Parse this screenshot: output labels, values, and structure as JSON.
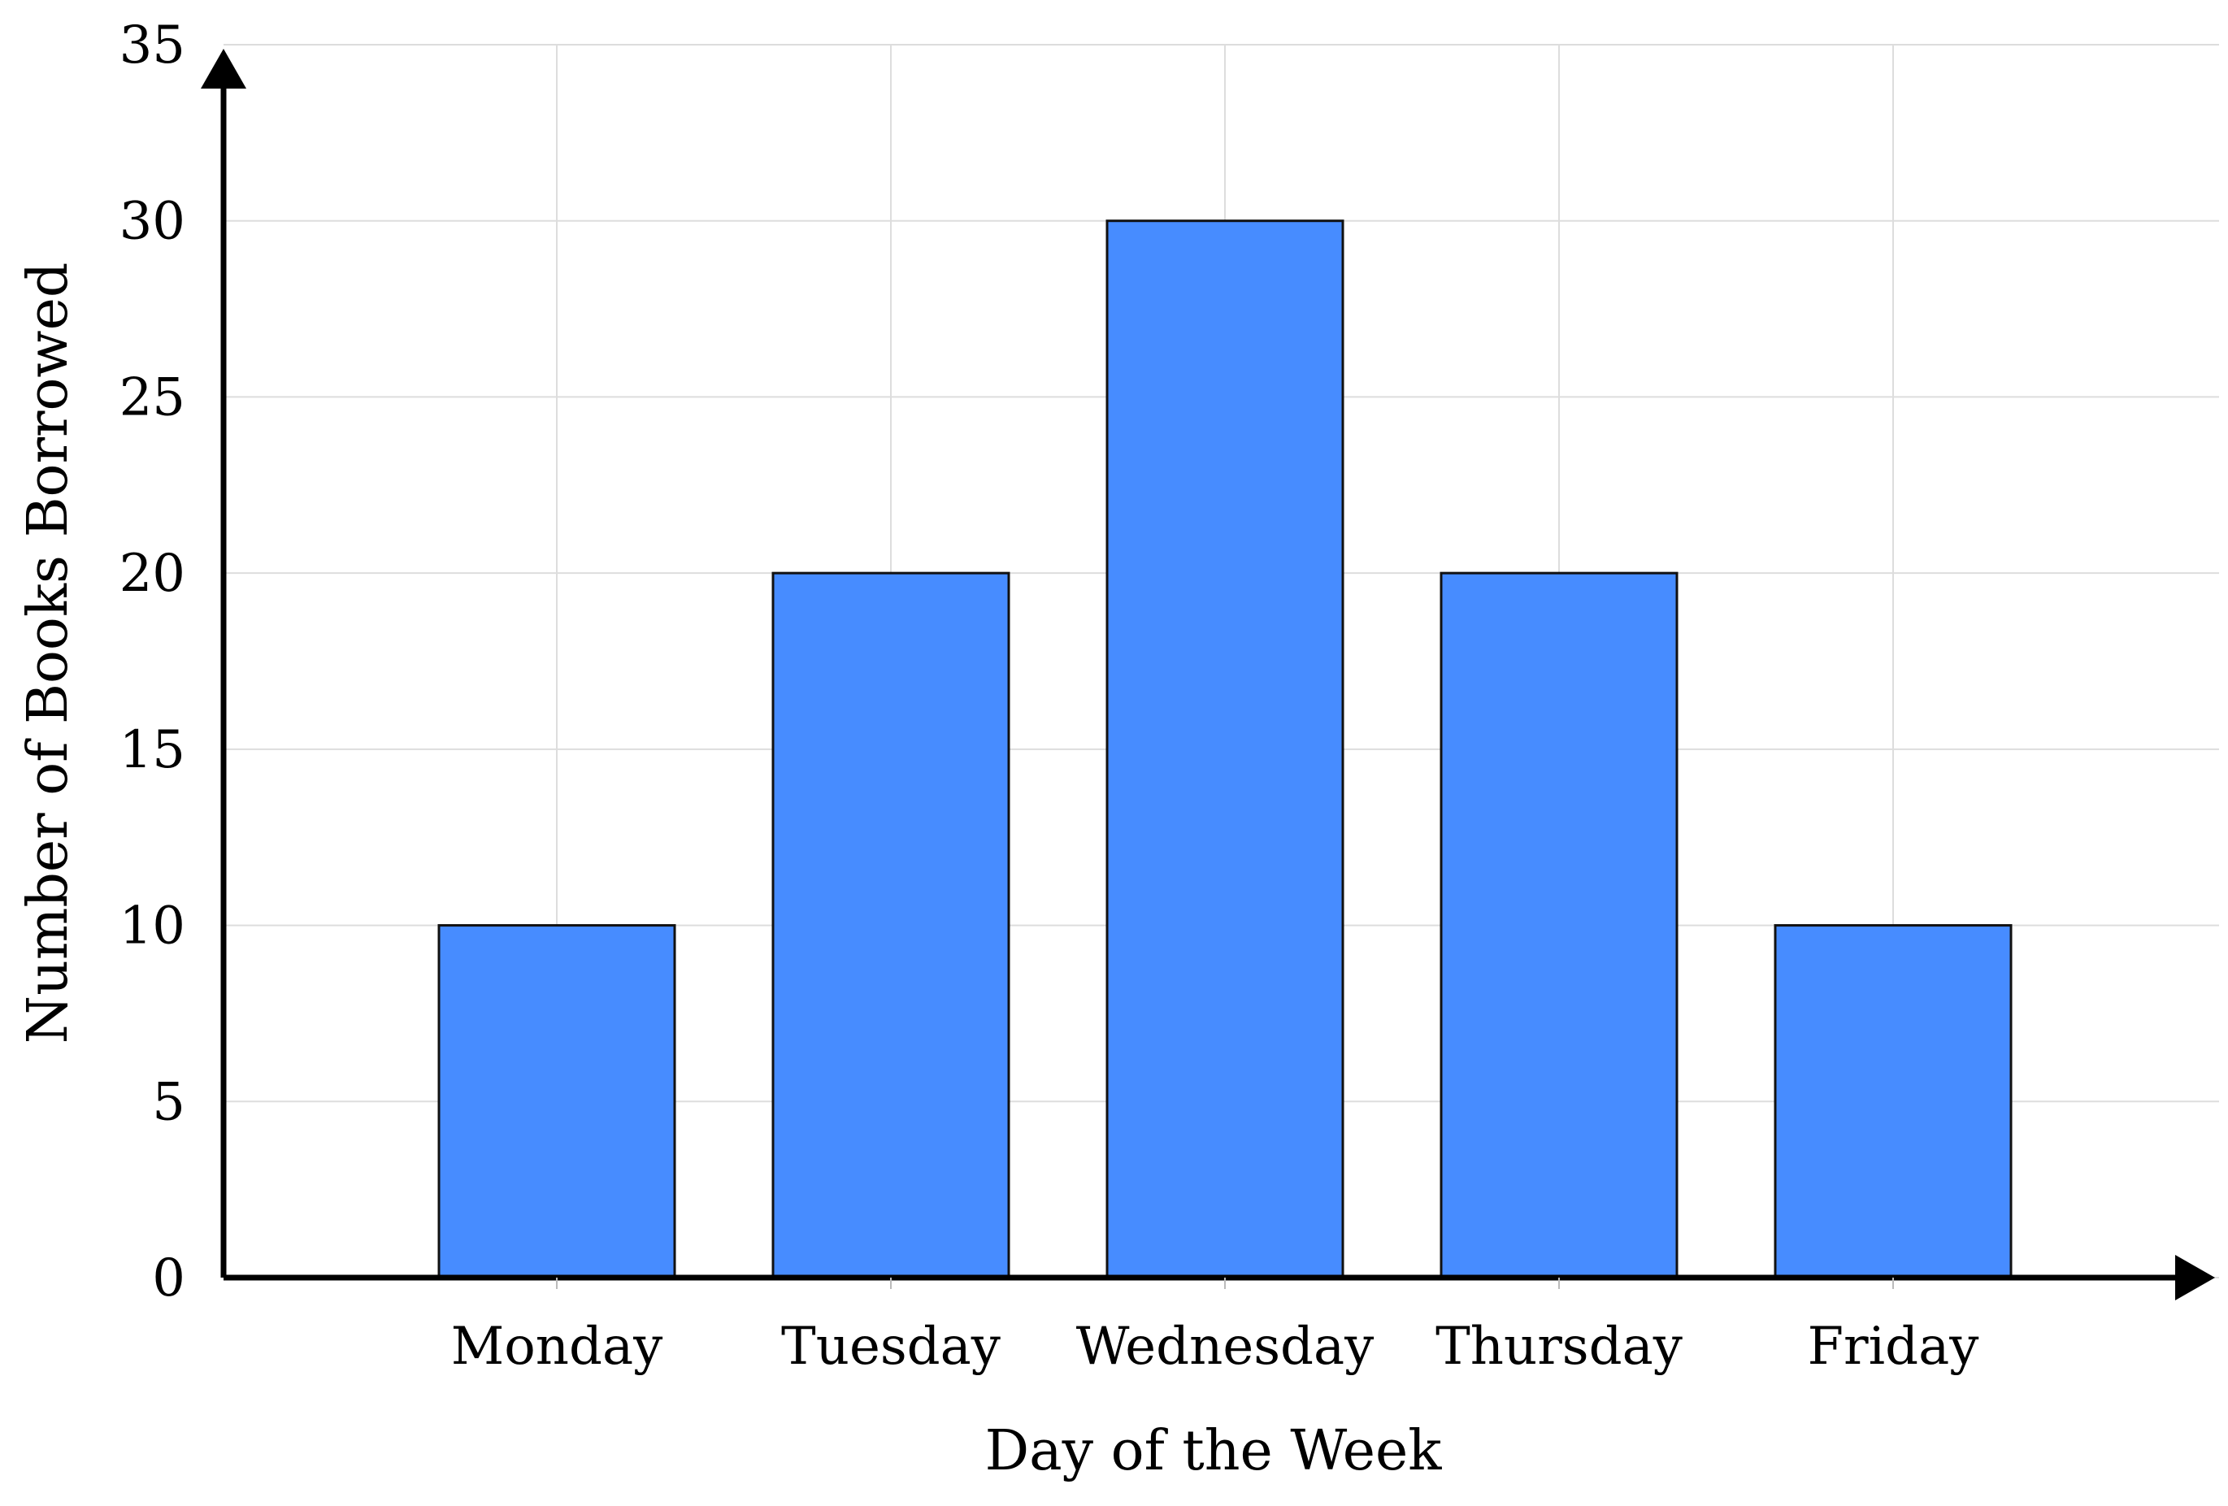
{
  "chart_data": {
    "type": "bar",
    "categories": [
      "Monday",
      "Tuesday",
      "Wednesday",
      "Thursday",
      "Friday"
    ],
    "values": [
      10,
      20,
      30,
      20,
      10
    ],
    "xlabel": "Day of the Week",
    "ylabel": "Number of Books Borrowed",
    "ylim": [
      0,
      35
    ],
    "yticks": [
      0,
      5,
      10,
      15,
      20,
      25,
      30,
      35
    ],
    "grid": true,
    "bar_color": "#478cff"
  }
}
